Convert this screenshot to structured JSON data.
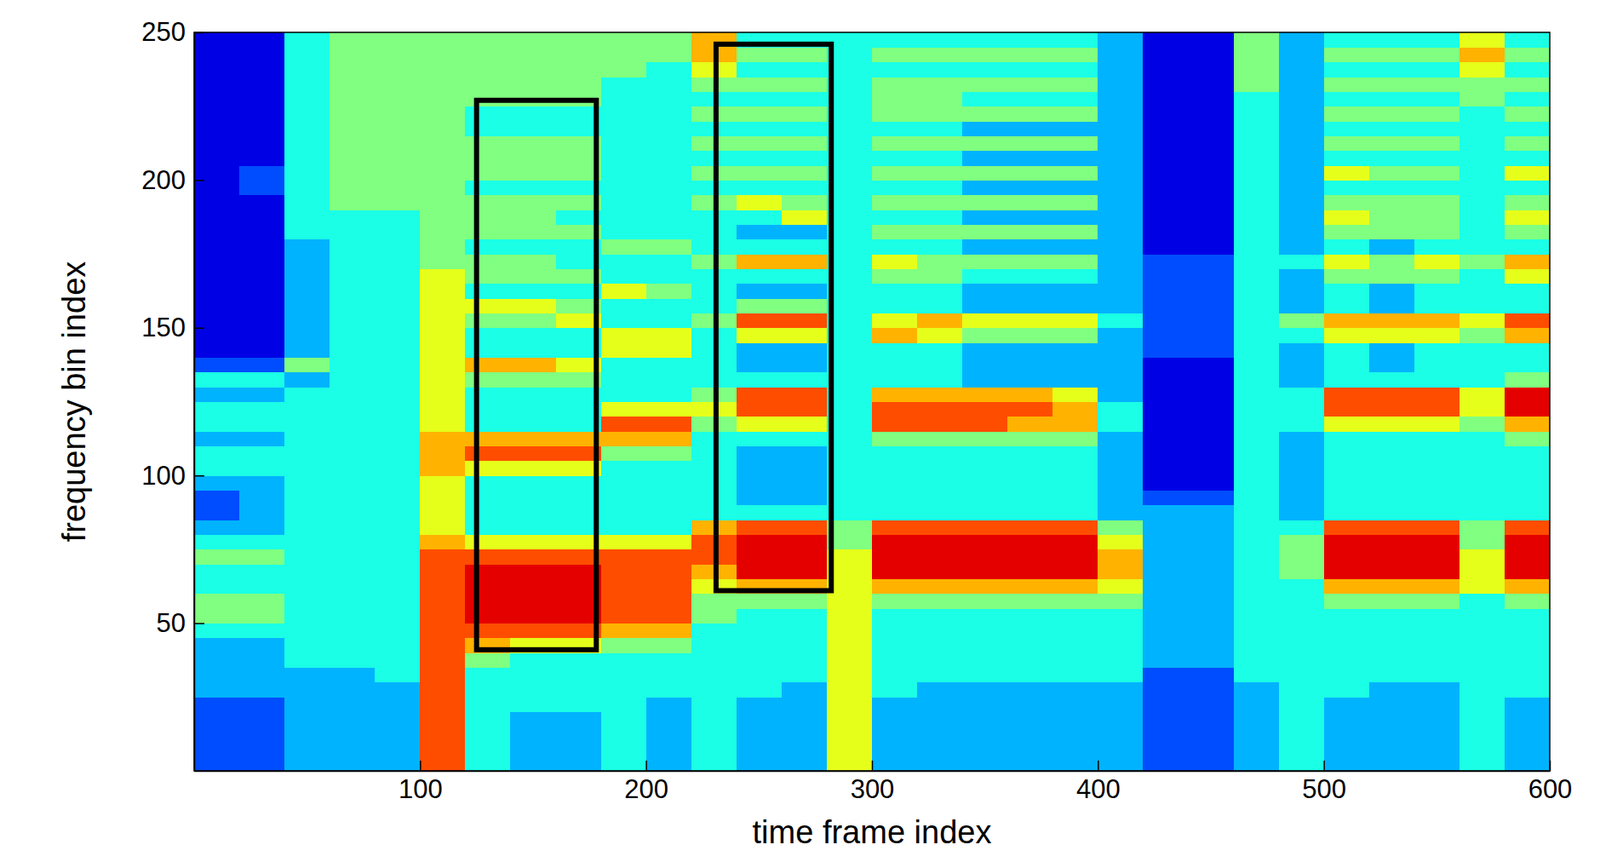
{
  "chart_data": {
    "type": "heatmap",
    "xlabel": "time frame index",
    "ylabel": "frequency bin index",
    "xlim": [
      0,
      600
    ],
    "ylim": [
      0,
      250
    ],
    "xticks": [
      100,
      200,
      300,
      400,
      500,
      600
    ],
    "yticks": [
      50,
      100,
      150,
      200,
      250
    ],
    "zlim": [
      0,
      10
    ],
    "x_bins": [
      0,
      20,
      40,
      60,
      80,
      100,
      120,
      140,
      160,
      180,
      200,
      220,
      240,
      260,
      280,
      300,
      320,
      340,
      360,
      380,
      400,
      420,
      440,
      460,
      480,
      500,
      520,
      540,
      560,
      580,
      600
    ],
    "y_bins": [
      0,
      5,
      10,
      15,
      20,
      25,
      30,
      35,
      40,
      45,
      50,
      55,
      60,
      65,
      70,
      75,
      80,
      85,
      90,
      95,
      100,
      105,
      110,
      115,
      120,
      125,
      130,
      135,
      140,
      145,
      150,
      155,
      160,
      165,
      170,
      175,
      180,
      185,
      190,
      195,
      200,
      205,
      210,
      215,
      220,
      225,
      230,
      235,
      240,
      245,
      250
    ],
    "z": [
      [
        2,
        2,
        3,
        3,
        3,
        8,
        4,
        3,
        3,
        4,
        3,
        4,
        3,
        3,
        6,
        3,
        3,
        3,
        3,
        3,
        3,
        2,
        2,
        3,
        4,
        3,
        3,
        3,
        4,
        3
      ],
      [
        2,
        2,
        3,
        3,
        3,
        8,
        4,
        3,
        3,
        4,
        3,
        4,
        3,
        3,
        6,
        3,
        3,
        3,
        3,
        3,
        3,
        2,
        2,
        3,
        4,
        3,
        3,
        3,
        4,
        3
      ],
      [
        2,
        2,
        3,
        3,
        3,
        8,
        4,
        3,
        3,
        4,
        3,
        4,
        3,
        3,
        6,
        3,
        3,
        3,
        3,
        3,
        3,
        2,
        2,
        3,
        4,
        3,
        3,
        3,
        4,
        3
      ],
      [
        2,
        2,
        3,
        3,
        3,
        8,
        4,
        3,
        3,
        4,
        3,
        4,
        3,
        3,
        6,
        3,
        3,
        3,
        3,
        3,
        3,
        2,
        2,
        3,
        4,
        3,
        3,
        3,
        4,
        3
      ],
      [
        2,
        2,
        3,
        3,
        3,
        8,
        4,
        4,
        4,
        4,
        3,
        4,
        3,
        3,
        6,
        3,
        3,
        3,
        3,
        3,
        3,
        2,
        2,
        3,
        4,
        3,
        3,
        3,
        4,
        3
      ],
      [
        3,
        3,
        3,
        3,
        3,
        8,
        4,
        4,
        4,
        4,
        4,
        4,
        4,
        3,
        6,
        4,
        3,
        3,
        3,
        3,
        3,
        2,
        2,
        3,
        4,
        4,
        3,
        3,
        4,
        4
      ],
      [
        3,
        3,
        3,
        3,
        4,
        8,
        4,
        4,
        4,
        4,
        4,
        4,
        4,
        4,
        6,
        4,
        4,
        4,
        4,
        4,
        4,
        2,
        2,
        4,
        4,
        4,
        4,
        4,
        4,
        4
      ],
      [
        3,
        3,
        4,
        4,
        4,
        8,
        5,
        4,
        4,
        4,
        4,
        4,
        4,
        4,
        6,
        4,
        4,
        4,
        4,
        4,
        4,
        3,
        3,
        4,
        4,
        4,
        4,
        4,
        4,
        4
      ],
      [
        3,
        3,
        4,
        4,
        4,
        8,
        7,
        6,
        6,
        5,
        5,
        4,
        4,
        4,
        6,
        4,
        4,
        4,
        4,
        4,
        4,
        3,
        3,
        4,
        4,
        4,
        4,
        4,
        4,
        4
      ],
      [
        4,
        4,
        4,
        4,
        4,
        8,
        8,
        8,
        8,
        7,
        7,
        4,
        4,
        4,
        6,
        4,
        4,
        4,
        4,
        4,
        4,
        3,
        3,
        4,
        4,
        4,
        4,
        4,
        4,
        4
      ],
      [
        5,
        5,
        4,
        4,
        4,
        8,
        9,
        9,
        9,
        8,
        8,
        5,
        4,
        4,
        6,
        4,
        4,
        4,
        4,
        4,
        4,
        3,
        3,
        4,
        4,
        4,
        4,
        4,
        4,
        4
      ],
      [
        5,
        5,
        4,
        4,
        4,
        8,
        9,
        9,
        9,
        8,
        8,
        5,
        5,
        5,
        6,
        5,
        5,
        5,
        5,
        5,
        5,
        3,
        3,
        4,
        4,
        5,
        5,
        5,
        4,
        5
      ],
      [
        4,
        4,
        4,
        4,
        4,
        8,
        9,
        9,
        9,
        8,
        8,
        6,
        7,
        7,
        6,
        7,
        7,
        7,
        7,
        7,
        6,
        3,
        3,
        4,
        4,
        7,
        7,
        7,
        6,
        7
      ],
      [
        4,
        4,
        4,
        4,
        4,
        8,
        9,
        9,
        9,
        8,
        8,
        7,
        9,
        9,
        6,
        9,
        9,
        9,
        9,
        9,
        7,
        3,
        3,
        4,
        5,
        9,
        9,
        9,
        6,
        9
      ],
      [
        5,
        5,
        4,
        4,
        4,
        8,
        8,
        8,
        8,
        8,
        8,
        8,
        9,
        9,
        6,
        9,
        9,
        9,
        9,
        9,
        7,
        3,
        3,
        4,
        5,
        9,
        9,
        9,
        6,
        9
      ],
      [
        4,
        4,
        4,
        4,
        4,
        7,
        6,
        6,
        6,
        6,
        6,
        8,
        9,
        9,
        5,
        9,
        9,
        9,
        9,
        9,
        6,
        3,
        3,
        4,
        5,
        9,
        9,
        9,
        5,
        9
      ],
      [
        3,
        3,
        4,
        4,
        4,
        6,
        4,
        4,
        4,
        4,
        4,
        7,
        8,
        8,
        5,
        8,
        8,
        8,
        8,
        8,
        5,
        3,
        3,
        4,
        4,
        8,
        8,
        8,
        5,
        8
      ],
      [
        2,
        3,
        4,
        4,
        4,
        6,
        4,
        4,
        4,
        4,
        4,
        4,
        4,
        4,
        4,
        4,
        4,
        4,
        4,
        4,
        3,
        3,
        3,
        4,
        3,
        4,
        4,
        4,
        4,
        4
      ],
      [
        2,
        3,
        4,
        4,
        4,
        6,
        4,
        4,
        4,
        4,
        4,
        4,
        3,
        3,
        4,
        4,
        4,
        4,
        4,
        4,
        3,
        2,
        2,
        4,
        3,
        4,
        4,
        4,
        4,
        4
      ],
      [
        3,
        3,
        4,
        4,
        4,
        6,
        4,
        4,
        4,
        4,
        4,
        4,
        3,
        3,
        4,
        4,
        4,
        4,
        4,
        4,
        3,
        1,
        1,
        4,
        3,
        4,
        4,
        4,
        4,
        4
      ],
      [
        4,
        4,
        4,
        4,
        4,
        7,
        6,
        6,
        6,
        4,
        4,
        4,
        3,
        3,
        4,
        4,
        4,
        4,
        4,
        4,
        3,
        1,
        1,
        4,
        3,
        4,
        4,
        4,
        4,
        4
      ],
      [
        4,
        4,
        4,
        4,
        4,
        7,
        8,
        8,
        8,
        5,
        5,
        4,
        3,
        3,
        4,
        4,
        4,
        4,
        4,
        4,
        3,
        1,
        1,
        4,
        3,
        4,
        4,
        4,
        4,
        4
      ],
      [
        3,
        3,
        4,
        4,
        4,
        7,
        7,
        7,
        7,
        7,
        7,
        4,
        4,
        4,
        4,
        5,
        5,
        5,
        5,
        5,
        3,
        1,
        1,
        4,
        3,
        4,
        4,
        4,
        4,
        5
      ],
      [
        4,
        4,
        4,
        4,
        4,
        6,
        4,
        4,
        4,
        8,
        8,
        5,
        6,
        6,
        4,
        8,
        8,
        8,
        7,
        7,
        4,
        1,
        1,
        4,
        4,
        6,
        6,
        6,
        5,
        7
      ],
      [
        4,
        4,
        4,
        4,
        4,
        6,
        4,
        4,
        4,
        6,
        6,
        6,
        8,
        8,
        4,
        8,
        8,
        8,
        8,
        7,
        4,
        1,
        1,
        4,
        4,
        8,
        8,
        8,
        6,
        9
      ],
      [
        3,
        3,
        4,
        4,
        4,
        6,
        4,
        4,
        4,
        4,
        4,
        5,
        8,
        8,
        4,
        7,
        7,
        7,
        7,
        6,
        3,
        1,
        1,
        4,
        4,
        8,
        8,
        8,
        6,
        9
      ],
      [
        4,
        4,
        3,
        4,
        4,
        6,
        5,
        5,
        5,
        4,
        4,
        4,
        4,
        4,
        4,
        4,
        4,
        3,
        3,
        3,
        3,
        1,
        1,
        4,
        3,
        4,
        4,
        4,
        4,
        5
      ],
      [
        2,
        2,
        5,
        4,
        4,
        6,
        7,
        7,
        6,
        4,
        4,
        4,
        3,
        3,
        4,
        4,
        4,
        3,
        3,
        3,
        3,
        1,
        1,
        4,
        3,
        4,
        3,
        4,
        4,
        4
      ],
      [
        1,
        1,
        3,
        4,
        4,
        6,
        4,
        4,
        4,
        6,
        6,
        4,
        3,
        3,
        4,
        4,
        4,
        3,
        3,
        3,
        3,
        2,
        2,
        4,
        3,
        4,
        3,
        4,
        4,
        4
      ],
      [
        1,
        1,
        3,
        4,
        4,
        6,
        4,
        4,
        4,
        6,
        6,
        4,
        6,
        6,
        4,
        7,
        6,
        5,
        5,
        5,
        3,
        2,
        2,
        4,
        4,
        6,
        6,
        6,
        5,
        7
      ],
      [
        1,
        1,
        3,
        4,
        4,
        6,
        5,
        5,
        6,
        4,
        4,
        5,
        8,
        8,
        4,
        6,
        7,
        6,
        6,
        6,
        4,
        2,
        2,
        4,
        5,
        7,
        7,
        7,
        6,
        8
      ],
      [
        1,
        1,
        3,
        4,
        4,
        6,
        6,
        6,
        5,
        4,
        4,
        4,
        5,
        5,
        4,
        4,
        4,
        3,
        3,
        3,
        3,
        2,
        2,
        4,
        3,
        4,
        3,
        4,
        4,
        4
      ],
      [
        1,
        1,
        3,
        4,
        4,
        6,
        4,
        4,
        4,
        6,
        5,
        4,
        3,
        3,
        4,
        4,
        4,
        3,
        3,
        3,
        3,
        2,
        2,
        4,
        3,
        4,
        3,
        4,
        4,
        4
      ],
      [
        1,
        1,
        3,
        4,
        4,
        6,
        5,
        5,
        5,
        4,
        4,
        4,
        4,
        4,
        4,
        5,
        5,
        4,
        4,
        4,
        3,
        2,
        2,
        4,
        3,
        5,
        5,
        5,
        4,
        6
      ],
      [
        1,
        1,
        3,
        4,
        4,
        5,
        5,
        5,
        4,
        4,
        4,
        5,
        7,
        7,
        4,
        6,
        5,
        5,
        5,
        5,
        3,
        2,
        2,
        4,
        4,
        6,
        5,
        6,
        5,
        7
      ],
      [
        1,
        1,
        3,
        4,
        4,
        5,
        4,
        4,
        4,
        5,
        5,
        4,
        4,
        4,
        4,
        4,
        4,
        3,
        3,
        3,
        3,
        1,
        1,
        4,
        3,
        4,
        3,
        4,
        4,
        4
      ],
      [
        1,
        1,
        4,
        4,
        4,
        5,
        5,
        5,
        5,
        4,
        4,
        4,
        3,
        3,
        4,
        5,
        5,
        5,
        5,
        5,
        3,
        1,
        1,
        4,
        3,
        5,
        5,
        5,
        4,
        5
      ],
      [
        1,
        1,
        4,
        4,
        4,
        5,
        5,
        5,
        4,
        4,
        4,
        4,
        4,
        6,
        4,
        4,
        4,
        3,
        3,
        3,
        3,
        1,
        1,
        4,
        3,
        6,
        5,
        5,
        4,
        6
      ],
      [
        1,
        1,
        4,
        5,
        5,
        5,
        5,
        5,
        5,
        4,
        4,
        5,
        6,
        5,
        4,
        5,
        5,
        5,
        5,
        5,
        3,
        1,
        1,
        4,
        3,
        5,
        5,
        5,
        4,
        5
      ],
      [
        1,
        2,
        4,
        5,
        5,
        5,
        4,
        4,
        4,
        4,
        4,
        4,
        4,
        4,
        4,
        4,
        4,
        3,
        3,
        3,
        3,
        1,
        1,
        4,
        3,
        4,
        4,
        4,
        4,
        4
      ],
      [
        1,
        2,
        4,
        5,
        5,
        5,
        5,
        5,
        5,
        4,
        4,
        5,
        5,
        5,
        4,
        5,
        5,
        5,
        5,
        5,
        3,
        1,
        1,
        4,
        3,
        6,
        5,
        5,
        4,
        6
      ],
      [
        1,
        1,
        4,
        5,
        5,
        5,
        5,
        5,
        5,
        4,
        4,
        4,
        4,
        4,
        4,
        4,
        4,
        3,
        3,
        3,
        3,
        1,
        1,
        4,
        3,
        4,
        4,
        4,
        4,
        4
      ],
      [
        1,
        1,
        4,
        5,
        5,
        5,
        5,
        5,
        5,
        4,
        4,
        5,
        5,
        5,
        4,
        5,
        5,
        5,
        5,
        5,
        3,
        1,
        1,
        4,
        3,
        5,
        5,
        5,
        4,
        5
      ],
      [
        1,
        1,
        4,
        5,
        5,
        5,
        4,
        4,
        4,
        4,
        4,
        4,
        4,
        4,
        4,
        4,
        4,
        3,
        3,
        3,
        3,
        1,
        1,
        4,
        3,
        4,
        4,
        4,
        4,
        4
      ],
      [
        1,
        1,
        4,
        5,
        5,
        5,
        4,
        4,
        4,
        4,
        4,
        5,
        5,
        5,
        4,
        5,
        5,
        5,
        5,
        5,
        3,
        1,
        1,
        4,
        3,
        5,
        5,
        5,
        4,
        5
      ],
      [
        1,
        1,
        4,
        5,
        5,
        5,
        5,
        5,
        5,
        4,
        4,
        4,
        4,
        4,
        4,
        5,
        5,
        4,
        4,
        4,
        3,
        1,
        1,
        4,
        3,
        4,
        4,
        4,
        5,
        4
      ],
      [
        1,
        1,
        4,
        5,
        5,
        5,
        5,
        5,
        5,
        4,
        4,
        5,
        5,
        5,
        4,
        5,
        5,
        5,
        5,
        5,
        3,
        1,
        1,
        5,
        3,
        5,
        5,
        5,
        5,
        5
      ],
      [
        1,
        1,
        4,
        5,
        5,
        5,
        5,
        5,
        5,
        5,
        4,
        6,
        4,
        4,
        4,
        4,
        4,
        4,
        4,
        4,
        3,
        1,
        1,
        5,
        3,
        4,
        4,
        4,
        6,
        4
      ],
      [
        1,
        1,
        4,
        5,
        5,
        5,
        5,
        5,
        5,
        5,
        5,
        7,
        5,
        5,
        4,
        5,
        5,
        5,
        5,
        5,
        3,
        1,
        1,
        5,
        3,
        5,
        5,
        5,
        7,
        5
      ],
      [
        1,
        1,
        4,
        5,
        5,
        5,
        5,
        5,
        5,
        5,
        5,
        7,
        4,
        4,
        4,
        4,
        4,
        4,
        4,
        4,
        3,
        1,
        1,
        5,
        3,
        4,
        4,
        4,
        6,
        4
      ]
    ],
    "boxes": [
      {
        "x0": 125,
        "x1": 178,
        "y0": 41,
        "y1": 227
      },
      {
        "x0": 231,
        "x1": 282,
        "y0": 61,
        "y1": 246
      }
    ]
  }
}
